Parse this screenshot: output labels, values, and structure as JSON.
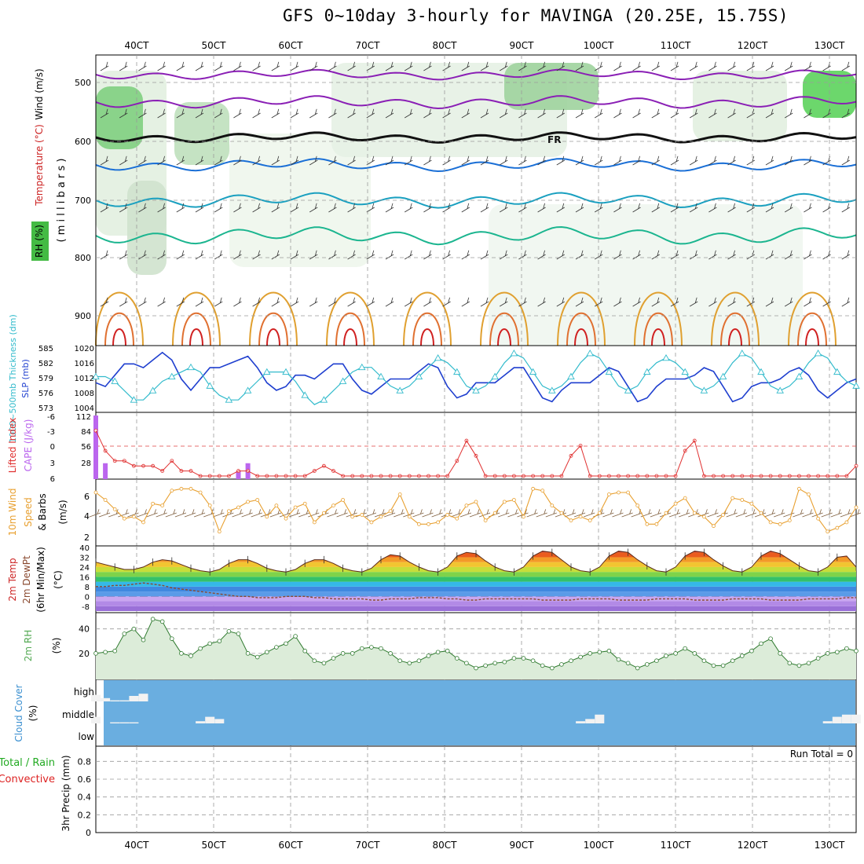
{
  "title": "GFS 0~10day 3-hourly for MAVINGA (20.25E, 15.75S)",
  "time_axis": {
    "ticks": [
      "40CT",
      "50CT",
      "60CT",
      "70CT",
      "80CT",
      "90CT",
      "100CT",
      "110CT",
      "120CT",
      "130CT"
    ]
  },
  "panels": {
    "upper_air": {
      "label_rh": "RH (%)",
      "label_temp": "Temperature (°C)",
      "label_wind": "Wind (m/s)",
      "label_pressure": "( m i l l i b a r s )",
      "pressure_ticks": [
        "500",
        "600",
        "700",
        "800",
        "900"
      ],
      "freezing_label": "FR"
    },
    "thickness_slp": {
      "label_thickness": "1000~500mb Thickness (dm)",
      "label_slp": "SLP (mb)",
      "thickness_ticks": [
        "585",
        "582",
        "579",
        "576",
        "573"
      ],
      "slp_ticks": [
        "1020",
        "1016",
        "1012",
        "1008",
        "1004"
      ]
    },
    "li_cape": {
      "label_li": "Lifted Index",
      "label_cape": "CAPE (J/kg)",
      "li_ticks": [
        "-6",
        "-3",
        "0",
        "3",
        "6"
      ],
      "cape_ticks": [
        "112",
        "84",
        "56",
        "28"
      ]
    },
    "wind10m": {
      "label_a": "10m Wind",
      "label_b": "Speed",
      "label_c": "& Barbs",
      "unit": "(m/s)",
      "ticks": [
        "6",
        "4",
        "2"
      ]
    },
    "temp2m": {
      "label_a": "2m Temp",
      "label_b": "2m DewPt",
      "label_c": "(6hr Min/Max)",
      "unit": "(°C)",
      "ticks": [
        "40",
        "32",
        "24",
        "16",
        "8",
        "0",
        "-8"
      ]
    },
    "rh2m": {
      "label": "2m RH",
      "unit": "(%)",
      "ticks": [
        "40",
        "20"
      ]
    },
    "cloud": {
      "label": "Cloud Cover",
      "unit": "(%)",
      "levels": [
        "high",
        "middle",
        "low"
      ]
    },
    "precip": {
      "label_a": "Total / Rain",
      "label_b": "Convective",
      "label_c": "3hr Precip (mm)",
      "run_total": "Run Total = 0",
      "ticks": [
        "0.8",
        "0.6",
        "0.4",
        "0.2",
        "0"
      ]
    }
  },
  "colors": {
    "slp": "#1f3fcf",
    "thickness": "#33bbcc",
    "lifted_index": "#e03030",
    "cape": "#bb66ee",
    "wind_speed": "#e8a030",
    "barbs": "#806040",
    "rh": "#55aa55",
    "cloud_bg": "#6aaee0",
    "precip": "#22aa22"
  },
  "chart_data": [
    {
      "type": "line",
      "name": "sea-level-pressure",
      "x_hours": [
        0,
        3,
        6,
        9,
        12,
        15,
        18,
        21,
        24,
        27,
        30,
        33,
        36,
        39,
        42,
        45,
        48,
        51,
        54,
        57,
        60,
        63,
        66,
        69,
        72,
        75,
        78,
        81,
        84,
        87,
        90,
        93,
        96,
        99,
        102,
        105,
        108,
        111,
        114,
        117,
        120,
        123,
        126,
        129,
        132,
        135,
        138,
        141,
        144,
        147,
        150,
        153,
        156,
        159,
        162,
        165,
        168,
        171,
        174,
        177,
        180,
        183,
        186,
        189,
        192,
        195,
        198,
        201,
        204,
        207,
        210,
        213,
        216,
        219,
        222,
        225,
        228,
        231,
        234,
        237,
        240
      ],
      "values": [
        1011,
        1010,
        1013,
        1016,
        1016,
        1015,
        1017,
        1019,
        1017,
        1012,
        1009,
        1012,
        1015,
        1015,
        1016,
        1017,
        1018,
        1015,
        1011,
        1009,
        1010,
        1013,
        1013,
        1012,
        1014,
        1016,
        1016,
        1012,
        1009,
        1008,
        1010,
        1012,
        1012,
        1012,
        1014,
        1016,
        1015,
        1010,
        1007,
        1008,
        1011,
        1011,
        1011,
        1013,
        1015,
        1015,
        1011,
        1007,
        1006,
        1009,
        1011,
        1011,
        1011,
        1013,
        1015,
        1014,
        1010,
        1006,
        1007,
        1010,
        1012,
        1012,
        1012,
        1013,
        1015,
        1014,
        1010,
        1006,
        1007,
        1010,
        1011,
        1011,
        1012,
        1014,
        1015,
        1013,
        1009,
        1007,
        1009,
        1011,
        1012
      ],
      "ylim": [
        1004,
        1020
      ]
    },
    {
      "type": "line",
      "name": "thickness",
      "values": [
        579,
        579,
        578,
        576,
        574,
        574,
        576,
        578,
        579,
        580,
        581,
        580,
        577,
        575,
        574,
        574,
        576,
        578,
        580,
        580,
        580,
        578,
        575,
        573,
        574,
        576,
        578,
        580,
        581,
        581,
        579,
        577,
        576,
        577,
        579,
        581,
        583,
        582,
        580,
        577,
        576,
        577,
        579,
        582,
        584,
        583,
        580,
        577,
        576,
        577,
        579,
        582,
        584,
        583,
        580,
        577,
        576,
        577,
        580,
        582,
        583,
        582,
        580,
        577,
        576,
        577,
        579,
        582,
        584,
        583,
        580,
        577,
        576,
        577,
        579,
        582,
        584,
        583,
        580,
        578,
        577
      ],
      "ylim": [
        572,
        585
      ]
    },
    {
      "type": "line",
      "name": "lifted-index",
      "values": [
        -3,
        1,
        3,
        3,
        4,
        4,
        4,
        5,
        3,
        5,
        5,
        6,
        6,
        6,
        6,
        5,
        5,
        6,
        6,
        6,
        6,
        6,
        6,
        5,
        4,
        5,
        6,
        6,
        6,
        6,
        6,
        6,
        6,
        6,
        6,
        6,
        6,
        6,
        3,
        -1,
        2,
        6,
        6,
        6,
        6,
        6,
        6,
        6,
        6,
        6,
        2,
        0,
        6,
        6,
        6,
        6,
        6,
        6,
        6,
        6,
        6,
        6,
        1,
        -1,
        6,
        6,
        6,
        6,
        6,
        6,
        6,
        6,
        6,
        6,
        6,
        6,
        6,
        6,
        6,
        6,
        4
      ],
      "ylim": [
        6,
        -6
      ]
    },
    {
      "type": "bar",
      "name": "cape",
      "values": [
        112,
        28,
        0,
        0,
        0,
        0,
        0,
        0,
        0,
        0,
        0,
        0,
        0,
        0,
        0,
        14,
        28,
        0,
        0,
        0,
        0,
        0,
        0,
        0,
        0,
        0,
        0,
        0,
        0,
        0,
        0,
        0,
        0,
        0,
        0,
        0,
        0,
        0,
        0,
        0,
        0,
        0,
        0,
        0,
        0,
        0,
        0,
        0,
        0,
        0,
        0,
        0,
        0,
        0,
        0,
        0,
        0,
        0,
        0,
        0,
        0,
        0,
        0,
        0,
        0,
        0,
        0,
        0,
        0,
        0,
        0,
        0,
        0,
        0,
        0,
        0,
        0,
        0,
        0,
        0,
        0
      ],
      "ylim": [
        0,
        112
      ]
    },
    {
      "type": "line",
      "name": "wind-speed-10m",
      "values": [
        6.4,
        5.6,
        4.6,
        3.6,
        3.8,
        3.2,
        5.2,
        5.0,
        6.6,
        6.8,
        6.8,
        6.4,
        5.0,
        2.2,
        4.4,
        4.8,
        5.4,
        5.6,
        3.8,
        5.0,
        3.6,
        4.8,
        5.2,
        3.2,
        4.2,
        5.0,
        5.6,
        3.8,
        4.0,
        3.2,
        3.8,
        4.4,
        6.2,
        3.8,
        3.0,
        3.0,
        3.2,
        4.0,
        3.6,
        5.0,
        5.4,
        3.4,
        4.2,
        5.4,
        5.6,
        3.8,
        6.8,
        6.6,
        5.0,
        4.2,
        3.4,
        3.8,
        3.4,
        4.2,
        6.2,
        6.4,
        6.4,
        5.0,
        3.0,
        3.0,
        4.2,
        5.2,
        5.8,
        4.2,
        3.8,
        2.8,
        4.0,
        5.8,
        5.6,
        5.2,
        4.2,
        3.2,
        3.0,
        3.4,
        6.8,
        6.2,
        3.6,
        2.2,
        2.6,
        3.2,
        4.8
      ],
      "ylim": [
        1,
        7.5
      ]
    },
    {
      "type": "area",
      "name": "temperature-2m",
      "values": [
        28,
        26,
        24,
        22,
        22,
        24,
        28,
        30,
        29,
        26,
        23,
        21,
        20,
        22,
        27,
        30,
        30,
        27,
        23,
        21,
        20,
        22,
        27,
        30,
        30,
        27,
        23,
        21,
        20,
        23,
        30,
        34,
        33,
        28,
        24,
        21,
        20,
        24,
        33,
        36,
        35,
        29,
        24,
        21,
        20,
        24,
        33,
        37,
        36,
        30,
        24,
        21,
        20,
        24,
        33,
        37,
        36,
        30,
        25,
        21,
        20,
        24,
        33,
        37,
        36,
        30,
        25,
        21,
        20,
        24,
        33,
        37,
        35,
        30,
        25,
        21,
        20,
        24,
        32,
        33,
        24
      ],
      "ylim": [
        -12,
        40
      ]
    },
    {
      "type": "line",
      "name": "dewpoint-2m",
      "values": [
        8,
        8,
        9,
        9,
        10,
        11,
        10,
        9,
        7,
        6,
        5,
        4,
        3,
        2,
        1,
        0,
        0,
        -1,
        -1,
        -1,
        0,
        0,
        0,
        -1,
        -1,
        -2,
        -2,
        -2,
        -2,
        -3,
        -3,
        -2,
        -2,
        -2,
        -1,
        -1,
        -1,
        -2,
        -2,
        -3,
        -3,
        -2,
        -2,
        -2,
        -2,
        -2,
        -2,
        -3,
        -3,
        -3,
        -3,
        -2,
        -2,
        -2,
        -2,
        -3,
        -3,
        -3,
        -3,
        -2,
        -2,
        -2,
        -2,
        -3,
        -3,
        -3,
        -3,
        -2,
        -2,
        -2,
        -2,
        -3,
        -3,
        -3,
        -3,
        -2,
        -2,
        -2,
        -2,
        -1,
        -1
      ],
      "ylim": [
        -12,
        40
      ]
    },
    {
      "type": "area",
      "name": "relative-humidity-2m",
      "values": [
        20,
        21,
        22,
        36,
        40,
        31,
        48,
        46,
        32,
        20,
        18,
        24,
        28,
        30,
        38,
        36,
        20,
        17,
        21,
        25,
        28,
        34,
        22,
        14,
        12,
        16,
        20,
        20,
        24,
        25,
        24,
        20,
        14,
        12,
        14,
        18,
        21,
        22,
        16,
        12,
        8,
        10,
        12,
        13,
        16,
        16,
        14,
        10,
        8,
        11,
        14,
        17,
        20,
        21,
        22,
        15,
        12,
        8,
        11,
        14,
        18,
        20,
        24,
        20,
        14,
        10,
        10,
        14,
        18,
        22,
        28,
        32,
        20,
        12,
        10,
        12,
        16,
        20,
        21,
        24,
        22
      ],
      "ylim": [
        0,
        52
      ]
    },
    {
      "type": "bar",
      "name": "cloud-cover",
      "high": [
        30,
        15,
        5,
        5,
        25,
        35,
        0,
        0,
        0,
        0,
        0,
        0,
        0,
        0,
        0,
        0,
        0,
        0,
        0,
        0,
        0,
        0,
        0,
        0,
        0,
        0,
        0,
        0,
        0,
        0,
        0,
        0,
        0,
        0,
        0,
        0,
        0,
        0,
        0,
        0,
        0,
        0,
        0,
        0,
        0,
        0,
        0,
        0,
        0,
        0,
        0,
        0,
        0,
        0,
        0,
        0,
        0,
        0,
        0,
        0,
        0,
        0,
        0,
        0,
        0,
        0,
        0,
        0,
        0,
        0,
        0,
        0,
        0,
        0,
        0,
        0,
        0,
        0,
        0,
        0,
        0
      ],
      "middle": [
        30,
        0,
        5,
        5,
        5,
        0,
        0,
        0,
        0,
        0,
        0,
        10,
        30,
        20,
        0,
        0,
        0,
        0,
        0,
        0,
        0,
        0,
        0,
        0,
        0,
        0,
        0,
        0,
        0,
        0,
        0,
        0,
        0,
        0,
        0,
        0,
        0,
        0,
        0,
        0,
        0,
        0,
        0,
        0,
        0,
        0,
        0,
        0,
        0,
        0,
        0,
        10,
        20,
        40,
        0,
        0,
        0,
        0,
        0,
        0,
        0,
        0,
        0,
        0,
        0,
        0,
        0,
        0,
        0,
        0,
        0,
        0,
        0,
        0,
        0,
        0,
        0,
        10,
        30,
        40,
        40
      ],
      "low": [
        0,
        0,
        0,
        0,
        0,
        0,
        0,
        0,
        0,
        0,
        0,
        0,
        0,
        0,
        0,
        0,
        0,
        0,
        0,
        0,
        0,
        0,
        0,
        0,
        0,
        0,
        0,
        0,
        0,
        0,
        0,
        0,
        0,
        0,
        0,
        0,
        0,
        0,
        0,
        0,
        0,
        0,
        0,
        0,
        0,
        0,
        0,
        0,
        0,
        0,
        0,
        0,
        0,
        0,
        0,
        0,
        0,
        0,
        0,
        0,
        0,
        0,
        0,
        0,
        0,
        0,
        0,
        0,
        0,
        0,
        0,
        0,
        0,
        0,
        0,
        0,
        0,
        0,
        0,
        0,
        0
      ]
    },
    {
      "type": "bar",
      "name": "precipitation-3hr",
      "values": [
        0,
        0,
        0,
        0,
        0,
        0,
        0,
        0,
        0,
        0,
        0,
        0,
        0,
        0,
        0,
        0,
        0,
        0,
        0,
        0,
        0,
        0,
        0,
        0,
        0,
        0,
        0,
        0,
        0,
        0,
        0,
        0,
        0,
        0,
        0,
        0,
        0,
        0,
        0,
        0,
        0,
        0,
        0,
        0,
        0,
        0,
        0,
        0,
        0,
        0,
        0,
        0,
        0,
        0,
        0,
        0,
        0,
        0,
        0,
        0,
        0,
        0,
        0,
        0,
        0,
        0,
        0,
        0,
        0,
        0,
        0,
        0,
        0,
        0,
        0,
        0,
        0,
        0,
        0,
        0,
        0
      ],
      "ylim": [
        0,
        0.9
      ]
    }
  ]
}
